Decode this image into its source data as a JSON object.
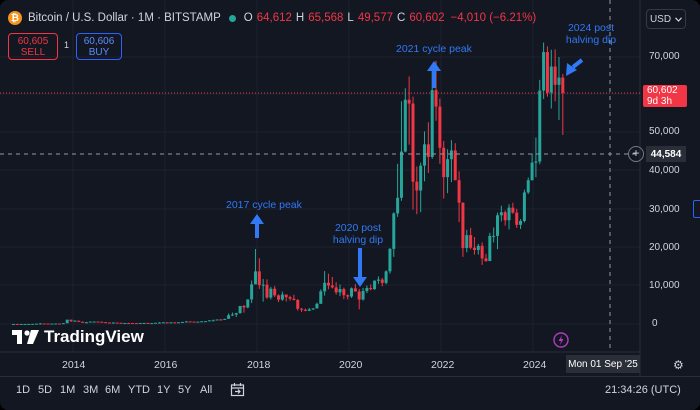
{
  "header": {
    "symbol": "Bitcoin / U.S. Dollar · 1M · BITSTAMP",
    "open_label": "O",
    "open": "64,612",
    "high_label": "H",
    "high": "65,568",
    "low_label": "L",
    "low": "49,577",
    "close_label": "C",
    "close": "60,602",
    "change": "−4,010 (−6.21%)"
  },
  "trade": {
    "sell_price": "60,605",
    "sell_label": "SELL",
    "spread": "1",
    "buy_price": "60,606",
    "buy_label": "BUY"
  },
  "currency": {
    "label": "USD",
    "icon": "chevron-down-icon"
  },
  "price_axis": {
    "ticks": [
      "70,000",
      "50,000",
      "40,000",
      "30,000",
      "20,000",
      "10,000",
      "0"
    ],
    "last_price": "60,602",
    "countdown": "9d 3h",
    "crosshair_price": "44,584"
  },
  "time_axis": {
    "ticks": [
      "2014",
      "2016",
      "2018",
      "2020",
      "2022",
      "2024"
    ],
    "crosshair_date": "Mon 01 Sep '25"
  },
  "annotations": {
    "peak_2017": "2017 cycle peak",
    "peak_2021": "2021 cycle peak",
    "dip_2020_line1": "2020 post",
    "dip_2020_line2": "halving dip",
    "dip_2024_line1": "2024 post",
    "dip_2024_line2": "halving dip"
  },
  "logo": {
    "text": "TradingView",
    "icon": "tradingview-logo-icon"
  },
  "timeframes": [
    "1D",
    "5D",
    "1M",
    "3M",
    "6M",
    "YTD",
    "1Y",
    "5Y",
    "All"
  ],
  "clock": "21:34:26 (UTC)",
  "colors": {
    "up": "#26a69a",
    "down": "#f23645",
    "accent": "#2962ff",
    "annotation": "#3179f5",
    "background": "#131722"
  },
  "chart_data": {
    "type": "candlestick",
    "interval": "1M",
    "ylim": [
      -3000,
      78000
    ],
    "candles": [
      [
        "2012-09",
        10,
        13,
        10,
        12
      ],
      [
        "2012-10",
        12,
        13,
        10,
        11
      ],
      [
        "2012-11",
        11,
        13,
        10,
        12
      ],
      [
        "2012-12",
        12,
        14,
        12,
        13
      ],
      [
        "2013-01",
        13,
        21,
        13,
        20
      ],
      [
        "2013-02",
        20,
        34,
        19,
        33
      ],
      [
        "2013-03",
        33,
        95,
        33,
        93
      ],
      [
        "2013-04",
        93,
        260,
        50,
        139
      ],
      [
        "2013-05",
        139,
        140,
        80,
        129
      ],
      [
        "2013-06",
        129,
        130,
        90,
        97
      ],
      [
        "2013-07",
        97,
        110,
        65,
        106
      ],
      [
        "2013-08",
        106,
        130,
        100,
        129
      ],
      [
        "2013-09",
        129,
        145,
        118,
        126
      ],
      [
        "2013-10",
        126,
        215,
        110,
        204
      ],
      [
        "2013-11",
        204,
        1160,
        200,
        1130
      ],
      [
        "2013-12",
        1130,
        1180,
        520,
        750
      ],
      [
        "2014-01",
        750,
        1000,
        740,
        860
      ],
      [
        "2014-02",
        860,
        870,
        550,
        570
      ],
      [
        "2014-03",
        570,
        700,
        450,
        450
      ],
      [
        "2014-04",
        450,
        550,
        340,
        450
      ],
      [
        "2014-05",
        450,
        630,
        420,
        630
      ],
      [
        "2014-06",
        630,
        680,
        560,
        640
      ],
      [
        "2014-07",
        640,
        650,
        570,
        590
      ],
      [
        "2014-08",
        590,
        600,
        450,
        480
      ],
      [
        "2014-09",
        480,
        500,
        380,
        390
      ],
      [
        "2014-10",
        390,
        420,
        290,
        340
      ],
      [
        "2014-11",
        340,
        450,
        320,
        380
      ],
      [
        "2014-12",
        380,
        390,
        300,
        320
      ],
      [
        "2015-01",
        320,
        320,
        170,
        220
      ],
      [
        "2015-02",
        220,
        280,
        210,
        255
      ],
      [
        "2015-03",
        255,
        300,
        240,
        245
      ],
      [
        "2015-04",
        245,
        260,
        215,
        235
      ],
      [
        "2015-05",
        235,
        245,
        225,
        230
      ],
      [
        "2015-06",
        230,
        270,
        220,
        263
      ],
      [
        "2015-07",
        263,
        320,
        255,
        285
      ],
      [
        "2015-08",
        285,
        290,
        200,
        230
      ],
      [
        "2015-09",
        230,
        245,
        225,
        236
      ],
      [
        "2015-10",
        236,
        330,
        235,
        312
      ],
      [
        "2015-11",
        312,
        500,
        310,
        378
      ],
      [
        "2015-12",
        378,
        470,
        350,
        430
      ],
      [
        "2016-01",
        430,
        460,
        350,
        370
      ],
      [
        "2016-02",
        370,
        440,
        360,
        437
      ],
      [
        "2016-03",
        437,
        440,
        400,
        416
      ],
      [
        "2016-04",
        416,
        470,
        410,
        448
      ],
      [
        "2016-05",
        448,
        550,
        440,
        530
      ],
      [
        "2016-06",
        530,
        780,
        520,
        670
      ],
      [
        "2016-07",
        670,
        690,
        610,
        624
      ],
      [
        "2016-08",
        624,
        620,
        480,
        575
      ],
      [
        "2016-09",
        575,
        620,
        580,
        610
      ],
      [
        "2016-10",
        610,
        720,
        600,
        700
      ],
      [
        "2016-11",
        700,
        750,
        690,
        742
      ],
      [
        "2016-12",
        742,
        980,
        740,
        960
      ],
      [
        "2017-01",
        960,
        1160,
        750,
        970
      ],
      [
        "2017-02",
        970,
        1200,
        920,
        1190
      ],
      [
        "2017-03",
        1190,
        1300,
        890,
        1080
      ],
      [
        "2017-04",
        1080,
        1350,
        1080,
        1350
      ],
      [
        "2017-05",
        1350,
        2770,
        1350,
        2300
      ],
      [
        "2017-06",
        2300,
        3000,
        2100,
        2480
      ],
      [
        "2017-07",
        2480,
        2920,
        1830,
        2870
      ],
      [
        "2017-08",
        2870,
        4740,
        2670,
        4730
      ],
      [
        "2017-09",
        4730,
        4980,
        2980,
        4340
      ],
      [
        "2017-10",
        4340,
        6470,
        4130,
        6450
      ],
      [
        "2017-11",
        6450,
        11400,
        5500,
        10400
      ],
      [
        "2017-12",
        10400,
        19660,
        10700,
        13800
      ],
      [
        "2018-01",
        13800,
        17250,
        9200,
        10200
      ],
      [
        "2018-02",
        10200,
        11800,
        5870,
        10300
      ],
      [
        "2018-03",
        10300,
        11700,
        6600,
        6930
      ],
      [
        "2018-04",
        6930,
        9750,
        6420,
        9250
      ],
      [
        "2018-05",
        9250,
        9960,
        7070,
        7500
      ],
      [
        "2018-06",
        7500,
        7770,
        5750,
        6390
      ],
      [
        "2018-07",
        6390,
        8500,
        6070,
        7730
      ],
      [
        "2018-08",
        7730,
        7730,
        5880,
        7030
      ],
      [
        "2018-09",
        7030,
        7410,
        6100,
        6630
      ],
      [
        "2018-10",
        6630,
        7680,
        6200,
        6300
      ],
      [
        "2018-11",
        6300,
        6560,
        3500,
        4000
      ],
      [
        "2018-12",
        4000,
        4210,
        3120,
        3740
      ],
      [
        "2019-01",
        3740,
        4080,
        3340,
        3460
      ],
      [
        "2019-02",
        3460,
        4210,
        3390,
        3820
      ],
      [
        "2019-03",
        3820,
        4150,
        3700,
        4100
      ],
      [
        "2019-04",
        4100,
        5600,
        4040,
        5300
      ],
      [
        "2019-05",
        5300,
        9070,
        5300,
        8570
      ],
      [
        "2019-06",
        8570,
        13880,
        7450,
        10800
      ],
      [
        "2019-07",
        10800,
        13200,
        9110,
        10100
      ],
      [
        "2019-08",
        10100,
        12330,
        9340,
        9600
      ],
      [
        "2019-09",
        9600,
        10950,
        7720,
        8300
      ],
      [
        "2019-10",
        8300,
        10400,
        7300,
        9150
      ],
      [
        "2019-11",
        9150,
        9520,
        6500,
        7550
      ],
      [
        "2019-12",
        7550,
        7750,
        6430,
        7200
      ],
      [
        "2020-01",
        7200,
        9580,
        6850,
        9350
      ],
      [
        "2020-02",
        9350,
        10500,
        8450,
        8540
      ],
      [
        "2020-03",
        8540,
        9190,
        3850,
        6420
      ],
      [
        "2020-04",
        6420,
        9460,
        6150,
        8630
      ],
      [
        "2020-05",
        8630,
        10070,
        8110,
        9450
      ],
      [
        "2020-06",
        9450,
        10380,
        8830,
        9140
      ],
      [
        "2020-07",
        9140,
        11460,
        8950,
        11350
      ],
      [
        "2020-08",
        11350,
        12480,
        10550,
        11650
      ],
      [
        "2020-09",
        11650,
        12080,
        9880,
        10780
      ],
      [
        "2020-10",
        10780,
        14100,
        10400,
        13800
      ],
      [
        "2020-11",
        13800,
        19900,
        13200,
        19700
      ],
      [
        "2020-12",
        19700,
        29300,
        17600,
        29000
      ],
      [
        "2021-01",
        29000,
        42000,
        28100,
        33100
      ],
      [
        "2021-02",
        33100,
        58400,
        32300,
        45200
      ],
      [
        "2021-03",
        45200,
        61800,
        45000,
        58800
      ],
      [
        "2021-04",
        58800,
        64900,
        47000,
        57800
      ],
      [
        "2021-05",
        57800,
        59600,
        30000,
        37300
      ],
      [
        "2021-06",
        37300,
        41300,
        28800,
        35000
      ],
      [
        "2021-07",
        35000,
        42300,
        29300,
        41500
      ],
      [
        "2021-08",
        41500,
        50500,
        37400,
        47100
      ],
      [
        "2021-09",
        47100,
        52900,
        39600,
        43800
      ],
      [
        "2021-10",
        43800,
        67000,
        43300,
        61300
      ],
      [
        "2021-11",
        61300,
        69000,
        53300,
        57000
      ],
      [
        "2021-12",
        57000,
        59100,
        42000,
        46200
      ],
      [
        "2022-01",
        46200,
        48000,
        32900,
        38500
      ],
      [
        "2022-02",
        38500,
        45800,
        34300,
        43200
      ],
      [
        "2022-03",
        43200,
        48200,
        37200,
        45500
      ],
      [
        "2022-04",
        45500,
        47400,
        37700,
        37700
      ],
      [
        "2022-05",
        37700,
        40000,
        26700,
        31800
      ],
      [
        "2022-06",
        31800,
        31900,
        17600,
        19900
      ],
      [
        "2022-07",
        19900,
        24700,
        18800,
        23300
      ],
      [
        "2022-08",
        23300,
        25200,
        19600,
        20000
      ],
      [
        "2022-09",
        20000,
        22800,
        18200,
        19400
      ],
      [
        "2022-10",
        19400,
        21000,
        18200,
        20500
      ],
      [
        "2022-11",
        20500,
        21400,
        15500,
        17200
      ],
      [
        "2022-12",
        17200,
        18400,
        16300,
        16500
      ],
      [
        "2023-01",
        16500,
        23900,
        16500,
        23100
      ],
      [
        "2023-02",
        23100,
        25300,
        21400,
        23100
      ],
      [
        "2023-03",
        23100,
        29200,
        19600,
        28500
      ],
      [
        "2023-04",
        28500,
        31000,
        26900,
        29300
      ],
      [
        "2023-05",
        29300,
        29800,
        25800,
        27200
      ],
      [
        "2023-06",
        27200,
        31400,
        24800,
        30500
      ],
      [
        "2023-07",
        30500,
        31800,
        28900,
        29200
      ],
      [
        "2023-08",
        29200,
        30200,
        25200,
        26000
      ],
      [
        "2023-09",
        26000,
        27500,
        24900,
        27000
      ],
      [
        "2023-10",
        27000,
        35200,
        26600,
        34500
      ],
      [
        "2023-11",
        34500,
        38400,
        34100,
        37700
      ],
      [
        "2023-12",
        37700,
        44700,
        37600,
        42300
      ],
      [
        "2024-01",
        42300,
        48900,
        38500,
        42600
      ],
      [
        "2024-02",
        42600,
        64000,
        41900,
        61200
      ],
      [
        "2024-03",
        61200,
        73800,
        59000,
        71300
      ],
      [
        "2024-04",
        71300,
        72800,
        59600,
        60700
      ],
      [
        "2024-05",
        60700,
        71900,
        56500,
        67500
      ],
      [
        "2024-06",
        67500,
        72000,
        58400,
        62700
      ],
      [
        "2024-07",
        62700,
        70000,
        53500,
        64600
      ],
      [
        "2024-08",
        64612,
        65568,
        49577,
        60602
      ]
    ]
  }
}
